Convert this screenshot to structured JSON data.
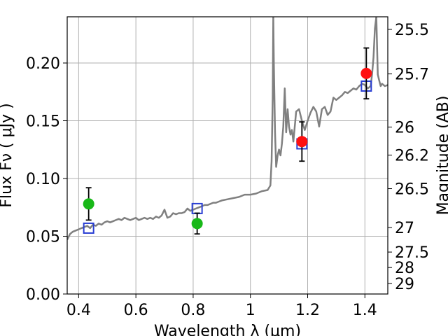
{
  "chart_data": {
    "type": "scatter",
    "title": "",
    "xlabel": "Wavelength  λ (μm)",
    "ylabel": "Flux  Fν  ( μJy )",
    "ylabel_right": "Magnitude (AB)",
    "xlim": [
      0.36,
      1.48
    ],
    "ylim": [
      0.0,
      0.24
    ],
    "grid": true,
    "x_ticks": [
      0.4,
      0.6,
      0.8,
      1.0,
      1.2,
      1.4
    ],
    "x_tick_labels": [
      "0.4",
      "0.6",
      "0.8",
      "1",
      "1.2",
      "1.4"
    ],
    "y_ticks": [
      0.0,
      0.05,
      0.1,
      0.15,
      0.2
    ],
    "y_tick_labels": [
      "0.00",
      "0.05",
      "0.10",
      "0.15",
      "0.20"
    ],
    "right_ticks": [
      {
        "label": "25.5",
        "value": 25.5
      },
      {
        "label": "25.7",
        "value": 25.7
      },
      {
        "label": "26",
        "value": 26.0
      },
      {
        "label": "26.2",
        "value": 26.2
      },
      {
        "label": "26.5",
        "value": 26.5
      },
      {
        "label": "27",
        "value": 27.0
      },
      {
        "label": "27.5",
        "value": 27.5
      },
      {
        "label": "28",
        "value": 28.0
      },
      {
        "label": "29",
        "value": 29.0
      }
    ],
    "series": [
      {
        "name": "model spectrum",
        "kind": "line",
        "color": "#808080",
        "x": [
          0.36,
          0.37,
          0.38,
          0.39,
          0.4,
          0.41,
          0.42,
          0.43,
          0.44,
          0.45,
          0.46,
          0.47,
          0.48,
          0.49,
          0.5,
          0.51,
          0.52,
          0.53,
          0.54,
          0.55,
          0.56,
          0.57,
          0.58,
          0.59,
          0.6,
          0.61,
          0.62,
          0.63,
          0.64,
          0.65,
          0.66,
          0.67,
          0.68,
          0.69,
          0.7,
          0.71,
          0.72,
          0.73,
          0.74,
          0.75,
          0.76,
          0.77,
          0.78,
          0.79,
          0.8,
          0.81,
          0.82,
          0.83,
          0.84,
          0.85,
          0.86,
          0.87,
          0.88,
          0.89,
          0.9,
          0.92,
          0.94,
          0.96,
          0.98,
          1.0,
          1.02,
          1.04,
          1.06,
          1.07,
          1.074,
          1.078,
          1.08,
          1.082,
          1.086,
          1.09,
          1.095,
          1.1,
          1.105,
          1.11,
          1.115,
          1.12,
          1.125,
          1.13,
          1.135,
          1.14,
          1.145,
          1.15,
          1.155,
          1.16,
          1.17,
          1.18,
          1.19,
          1.2,
          1.21,
          1.22,
          1.23,
          1.24,
          1.25,
          1.26,
          1.27,
          1.28,
          1.29,
          1.3,
          1.31,
          1.32,
          1.33,
          1.34,
          1.35,
          1.36,
          1.37,
          1.38,
          1.39,
          1.4,
          1.41,
          1.42,
          1.425,
          1.43,
          1.435,
          1.44,
          1.445,
          1.45,
          1.455,
          1.46,
          1.47,
          1.48
        ],
        "y": [
          0.047,
          0.052,
          0.054,
          0.055,
          0.056,
          0.057,
          0.058,
          0.059,
          0.057,
          0.06,
          0.059,
          0.061,
          0.06,
          0.062,
          0.063,
          0.062,
          0.063,
          0.064,
          0.065,
          0.064,
          0.066,
          0.065,
          0.064,
          0.065,
          0.066,
          0.064,
          0.065,
          0.066,
          0.065,
          0.066,
          0.065,
          0.067,
          0.066,
          0.068,
          0.073,
          0.066,
          0.067,
          0.07,
          0.069,
          0.07,
          0.07,
          0.071,
          0.074,
          0.072,
          0.073,
          0.074,
          0.075,
          0.076,
          0.077,
          0.077,
          0.078,
          0.079,
          0.079,
          0.08,
          0.081,
          0.082,
          0.083,
          0.084,
          0.086,
          0.086,
          0.087,
          0.089,
          0.09,
          0.094,
          0.115,
          0.17,
          0.24,
          0.2,
          0.14,
          0.11,
          0.12,
          0.125,
          0.12,
          0.13,
          0.145,
          0.178,
          0.14,
          0.16,
          0.145,
          0.138,
          0.142,
          0.132,
          0.145,
          0.158,
          0.16,
          0.15,
          0.142,
          0.15,
          0.157,
          0.162,
          0.158,
          0.145,
          0.16,
          0.162,
          0.155,
          0.158,
          0.17,
          0.168,
          0.17,
          0.172,
          0.175,
          0.174,
          0.176,
          0.178,
          0.177,
          0.18,
          0.182,
          0.181,
          0.178,
          0.18,
          0.19,
          0.205,
          0.23,
          0.24,
          0.19,
          0.185,
          0.18,
          0.182,
          0.18,
          0.181
        ]
      },
      {
        "name": "model photometry",
        "kind": "open-square",
        "color": "#2a3fd3",
        "points": [
          {
            "x": 0.435,
            "y": 0.057
          },
          {
            "x": 0.814,
            "y": 0.074
          },
          {
            "x": 1.18,
            "y": 0.13
          },
          {
            "x": 1.405,
            "y": 0.18
          }
        ]
      },
      {
        "name": "upper-limit photometry",
        "kind": "filled-circle",
        "color": "#18b818",
        "points": [
          {
            "x": 0.435,
            "y": 0.078,
            "err": 0.014
          },
          {
            "x": 0.814,
            "y": 0.061,
            "err": 0.009
          }
        ]
      },
      {
        "name": "detected photometry",
        "kind": "filled-circle",
        "color": "#ff1010",
        "points": [
          {
            "x": 1.18,
            "y": 0.132,
            "err": 0.017
          },
          {
            "x": 1.405,
            "y": 0.191,
            "err": 0.022
          }
        ]
      }
    ]
  }
}
